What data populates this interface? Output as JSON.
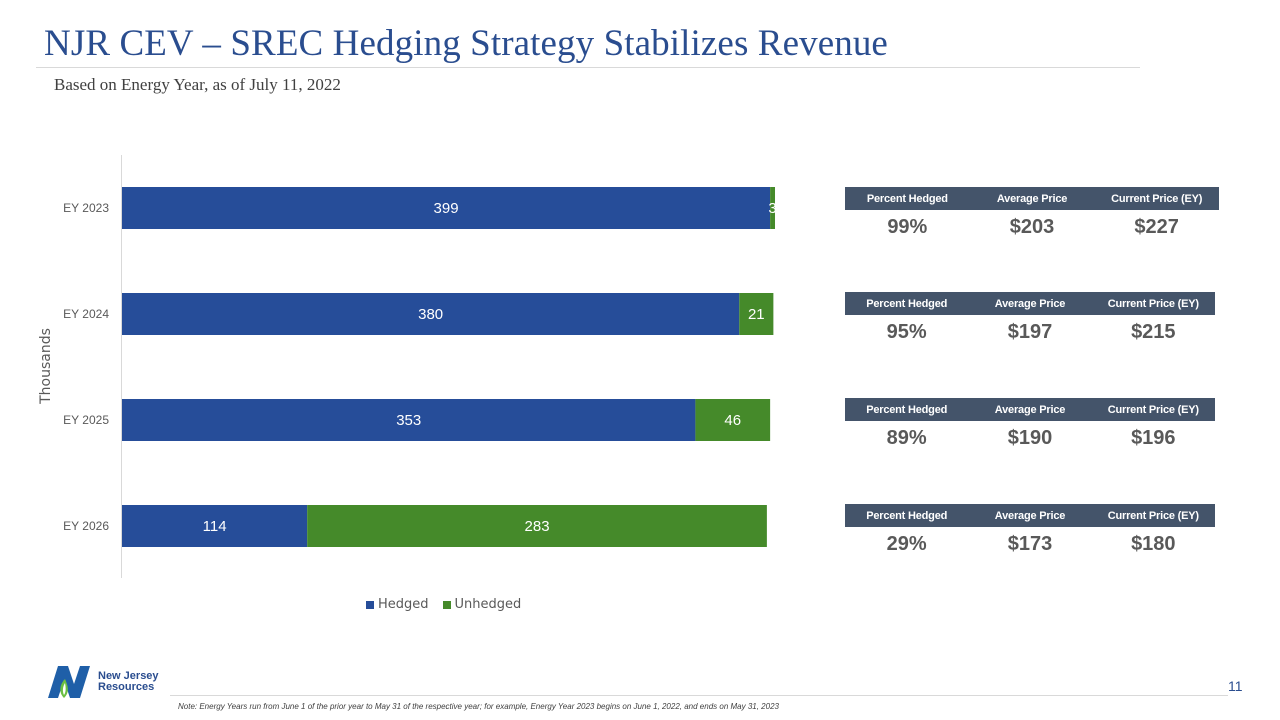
{
  "slide": {
    "title": "NJR CEV – SREC Hedging Strategy Stabilizes Revenue",
    "subtitle": "Based on Energy Year, as of July 11, 2022",
    "page_number": "11",
    "note": "Note: Energy Years run from  June 1 of the prior year to May 31 of the respective year; for example,  Energy Year 2023 begins on June 1, 2022, and ends on May 31, 2023",
    "logo": {
      "line1": "New Jersey",
      "line2": "Resources"
    }
  },
  "colors": {
    "title": "#2a4d8f",
    "hedged": "#264d99",
    "unhedged": "#458a2a",
    "table_header": "#44546a"
  },
  "chart_data": {
    "type": "bar",
    "orientation": "horizontal",
    "stacked": true,
    "title": "",
    "xlabel": "",
    "ylabel": "Thousands",
    "categories": [
      "EY 2023",
      "EY 2024",
      "EY 2025",
      "EY 2026"
    ],
    "series": [
      {
        "name": "Hedged",
        "values": [
          399,
          380,
          353,
          114
        ],
        "color": "#264d99"
      },
      {
        "name": "Unhedged",
        "values": [
          3,
          21,
          46,
          283
        ],
        "color": "#458a2a"
      }
    ],
    "xlim": [
      0,
      410
    ],
    "grid": false,
    "legend": {
      "position": "bottom",
      "entries": [
        "Hedged",
        "Unhedged"
      ]
    }
  },
  "stats": {
    "headers": [
      "Percent Hedged",
      "Average Price",
      "Current Price (EY)"
    ],
    "rows": [
      {
        "year": "EY 2023",
        "percent_hedged": "99%",
        "average_price": "$203",
        "current_price": "$227"
      },
      {
        "year": "EY 2024",
        "percent_hedged": "95%",
        "average_price": "$197",
        "current_price": "$215"
      },
      {
        "year": "EY 2025",
        "percent_hedged": "89%",
        "average_price": "$190",
        "current_price": "$196"
      },
      {
        "year": "EY 2026",
        "percent_hedged": "29%",
        "average_price": "$173",
        "current_price": "$180"
      }
    ]
  }
}
